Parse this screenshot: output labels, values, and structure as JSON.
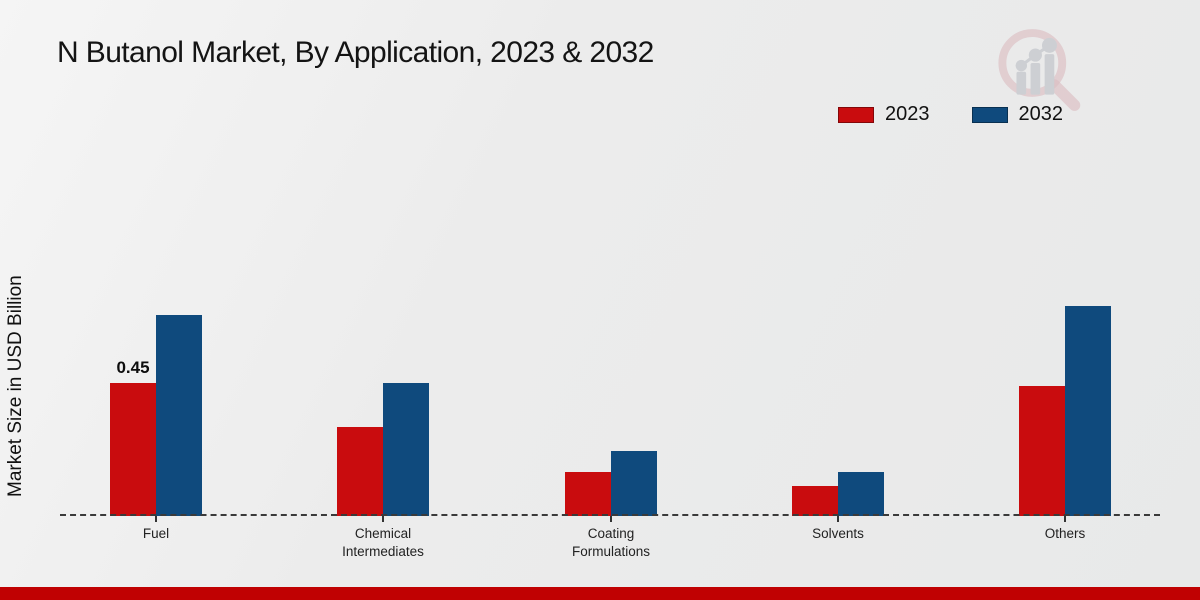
{
  "page": {
    "title": "N Butanol Market, By Application, 2023 & 2032",
    "ylabel": "Market Size in USD Billion"
  },
  "colors": {
    "series_2023": "#c90c0e",
    "series_2032": "#0f4a7d",
    "footer_bar": "#c00102",
    "baseline": "#3a3a3a"
  },
  "legend": {
    "items": [
      {
        "label": "2023",
        "color": "#c90c0e"
      },
      {
        "label": "2032",
        "color": "#0f4a7d"
      }
    ]
  },
  "chart_data": {
    "type": "bar",
    "title": "N Butanol Market, By Application, 2023 & 2032",
    "xlabel": "",
    "ylabel": "Market Size in USD Billion",
    "categories": [
      "Fuel",
      "Chemical Intermediates",
      "Coating Formulations",
      "Solvents",
      "Others"
    ],
    "series": [
      {
        "name": "2023",
        "color": "#c90c0e",
        "values": [
          0.45,
          0.3,
          0.15,
          0.1,
          0.44
        ]
      },
      {
        "name": "2032",
        "color": "#0f4a7d",
        "values": [
          0.68,
          0.45,
          0.22,
          0.15,
          0.71
        ]
      }
    ],
    "ylim": [
      0,
      0.75
    ],
    "grid": false,
    "axis_style": "dashed-baseline-only",
    "legend_position": "top-right",
    "bar_labels": [
      {
        "category": "Fuel",
        "series": "2023",
        "text": "0.45"
      }
    ]
  }
}
